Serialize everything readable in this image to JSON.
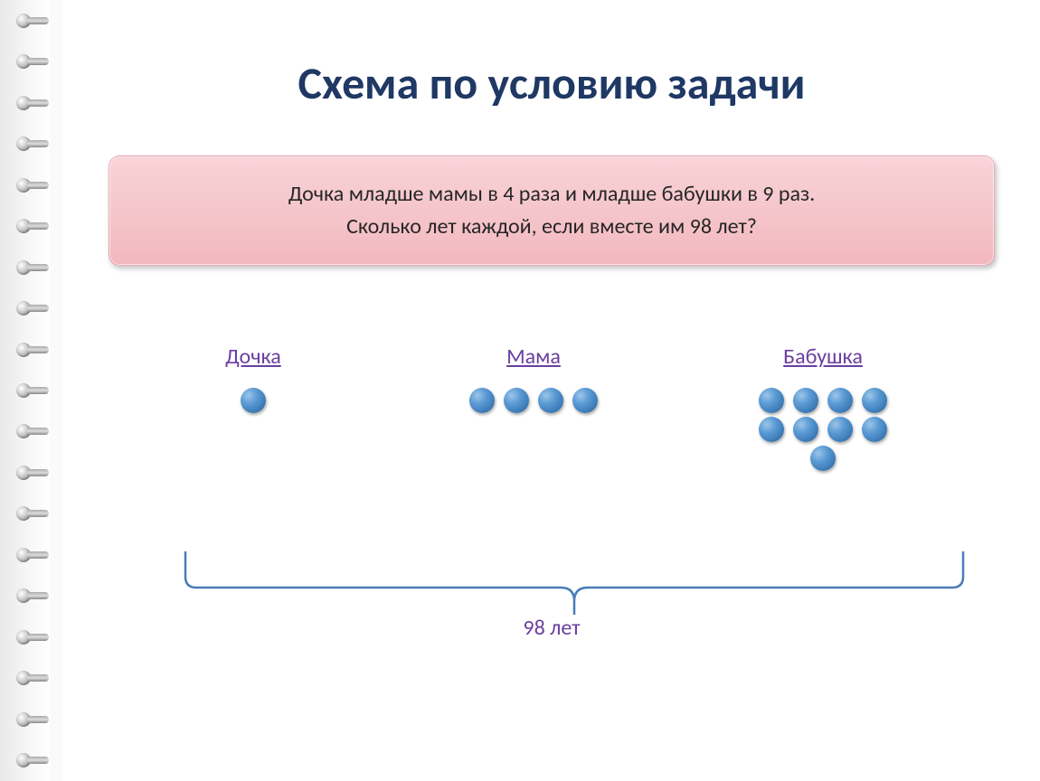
{
  "title": {
    "text": "Схема по условию задачи",
    "color": "#1f3864",
    "fontsize": 50
  },
  "problem_box": {
    "line1": "Дочка младше мамы в 4 раза и младше бабушки в 9 раз.",
    "line2": "Сколько лет каждой, если вместе им 98 лет?",
    "background_top": "#f8d4d8",
    "background_bottom": "#f2b8be",
    "text_color": "#262626",
    "fontsize": 24
  },
  "diagram": {
    "groups": [
      {
        "label": "Дочка",
        "label_color": "#6b3fa0",
        "dots": 1,
        "dot_layout": [
          [
            1
          ]
        ]
      },
      {
        "label": "Мама",
        "label_color": "#6b3fa0",
        "dots": 4,
        "dot_layout": [
          [
            1,
            1,
            1,
            1
          ]
        ]
      },
      {
        "label": "Бабушка",
        "label_color": "#6b3fa0",
        "dots": 9,
        "dot_layout": [
          [
            1,
            1,
            1,
            1
          ],
          [
            1,
            1,
            1,
            1
          ],
          [
            1
          ]
        ]
      }
    ],
    "dot_color_primary": "#5b9bd5",
    "dot_color_highlight": "#9dc5e8",
    "dot_size": 28
  },
  "bracket": {
    "label": "98 лет",
    "label_color": "#6b3fa0",
    "stroke_color": "#4a7cb8",
    "stroke_width": 2
  }
}
